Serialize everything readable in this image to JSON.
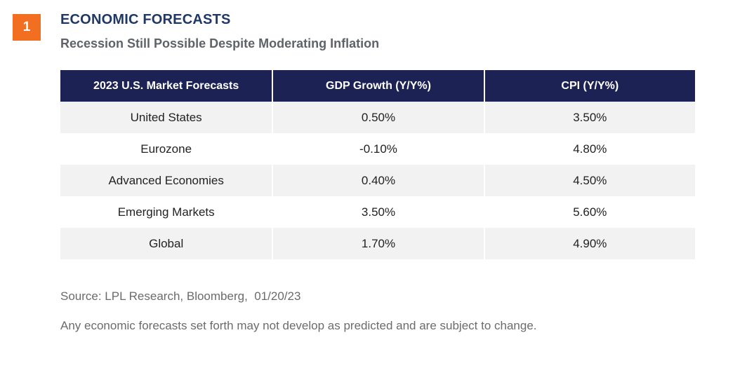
{
  "badge": "1",
  "title": "ECONOMIC FORECASTS",
  "subtitle": "Recession Still Possible Despite Moderating Inflation",
  "colors": {
    "badge": "#f26f21",
    "title": "#1f3864",
    "header_bg": "#1c2354",
    "stripe": "#f2f2f2"
  },
  "chart_data": {
    "type": "table",
    "title": "ECONOMIC FORECASTS",
    "subtitle": "Recession Still Possible Despite Moderating Inflation",
    "columns": [
      "2023 U.S. Market Forecasts",
      "GDP Growth (Y/Y%)",
      "CPI (Y/Y%)"
    ],
    "rows": [
      [
        "United States",
        "0.50%",
        "3.50%"
      ],
      [
        "Eurozone",
        "-0.10%",
        "4.80%"
      ],
      [
        "Advanced Economies",
        "0.40%",
        "4.50%"
      ],
      [
        "Emerging Markets",
        "3.50%",
        "5.60%"
      ],
      [
        "Global",
        "1.70%",
        "4.90%"
      ]
    ]
  },
  "footer": {
    "source": "Source: LPL Research, Bloomberg,  01/20/23",
    "disclaimer": "Any economic forecasts set forth may not develop as predicted and are subject to change."
  }
}
